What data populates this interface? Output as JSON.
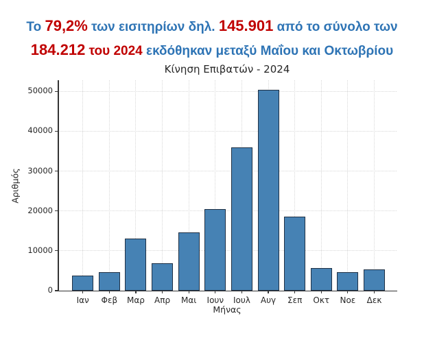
{
  "header": {
    "colors": {
      "blue": "#2E74B5",
      "red": "#C00000"
    },
    "line1": [
      {
        "text": "Το ",
        "style": "blue"
      },
      {
        "text": "79,2%",
        "style": "red"
      },
      {
        "text": " των εισιτηρίων δηλ. ",
        "style": "blue"
      },
      {
        "text": "145.901",
        "style": "red"
      },
      {
        "text": " από το σύνολο των",
        "style": "blue"
      }
    ],
    "line2": [
      {
        "text": "184.212",
        "style": "red"
      },
      {
        "text": " του 2024 ",
        "style": "redsm"
      },
      {
        "text": "εκδόθηκαν μεταξύ Μαΐου και Οκτωβρίου",
        "style": "blue"
      }
    ]
  },
  "chart_data": {
    "type": "bar",
    "title": "Κίνηση Επιβατών - 2024",
    "xlabel": "Μήνας",
    "ylabel": "Αριθμός",
    "categories": [
      "Ιαν",
      "Φεβ",
      "Μαρ",
      "Απρ",
      "Μαι",
      "Ιουν",
      "Ιουλ",
      "Αυγ",
      "Σεπ",
      "Οκτ",
      "Νοε",
      "Δεκ"
    ],
    "values": [
      3750,
      4700,
      13000,
      6950,
      14700,
      20480,
      35950,
      50400,
      18650,
      5721,
      4650,
      5261
    ],
    "total_year": "184.212",
    "total_may_oct": "145.901",
    "yticks": [
      0,
      10000,
      20000,
      30000,
      40000,
      50000
    ],
    "ylim": [
      0,
      52800
    ],
    "grid": "dotted, both axes",
    "legend": "none",
    "bar_color": "#4682B4",
    "bar_edge_color": "#1F3044",
    "grid_color": "#D7D7D7",
    "axis_color": "#333333",
    "tick_label_color": "#262626"
  }
}
